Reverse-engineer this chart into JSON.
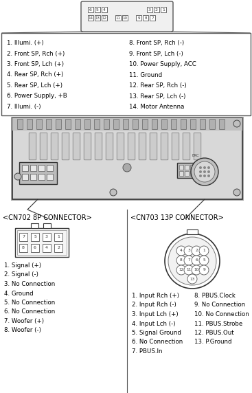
{
  "bg_color": "#ffffff",
  "top_row1_left": [
    "6",
    "5",
    "4"
  ],
  "top_row1_right": [
    "3",
    "2",
    "1"
  ],
  "top_row2": [
    "14",
    "13",
    "12",
    "11",
    "10",
    "9",
    "8",
    "7"
  ],
  "left_labels": [
    "1. Illumi. (+)",
    "2. Front SP, Rch (+)",
    "3. Front SP, Lch (+)",
    "4. Rear SP, Rch (+)",
    "5. Rear SP, Lch (+)",
    "6. Power Supply, +B",
    "7. Illumi. (-)"
  ],
  "right_labels": [
    "8. Front SP, Rch (-)",
    "9. Front SP, Lch (-)",
    "10. Power Supply, ACC",
    "11. Ground",
    "12. Rear SP, Rch (-)",
    "13. Rear SP, Lch (-)",
    "14. Motor Antenna"
  ],
  "cn702_label": "<CN702 8P CONNECTOR>",
  "cn702_pins_row1": [
    "7",
    "5",
    "3",
    "1"
  ],
  "cn702_pins_row2": [
    "8",
    "6",
    "4",
    "2"
  ],
  "cn702_labels": [
    "1. Signal (+)",
    "2. Signal (-)",
    "3. No Connection",
    "4. Ground",
    "5. No Connection",
    "6. No Connection",
    "7. Woofer (+)",
    "8. Woofer (-)"
  ],
  "cn703_label": "<CN703 13P CONNECTOR>",
  "cn703_rows": [
    [
      "4",
      "3",
      "2",
      "1"
    ],
    [
      "8",
      "7",
      "6",
      "5"
    ],
    [
      "12",
      "11",
      "10",
      "9"
    ]
  ],
  "cn703_bottom": "13",
  "cn703_left_labels": [
    "1. Input Rch (+)",
    "2. Input Rch (-)",
    "3. Input Lch (+)",
    "4. Input Lch (-)",
    "5. Signal Ground",
    "6. No Connection",
    "7. PBUS.In"
  ],
  "cn703_right_labels": [
    "8. PBUS.Clock",
    "9. No Connection",
    "10. No Connection",
    "11. PBUS.Strobe",
    "12. PBUS.Out",
    "13. P.Ground"
  ]
}
